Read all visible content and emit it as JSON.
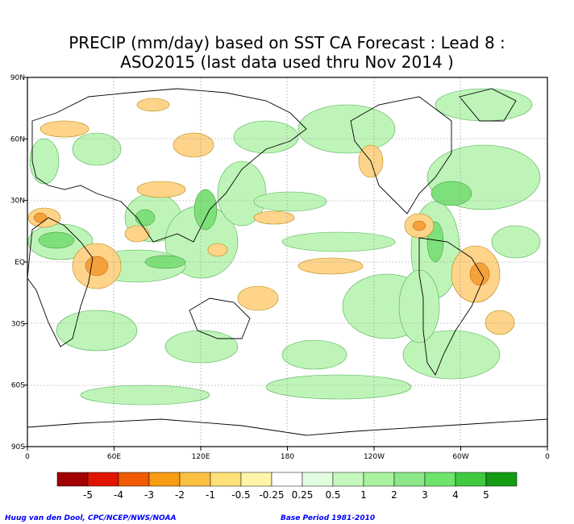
{
  "title": {
    "line1": "PRECIP (mm/day) based on SST CA Forecast : Lead 8 :",
    "line2": "ASO2015 (last data used thru Nov 2014 )"
  },
  "map": {
    "lat_labels": [
      "90N",
      "60N",
      "30N",
      "EQ",
      "30S",
      "60S",
      "90S"
    ],
    "lon_labels": [
      "0",
      "60E",
      "120E",
      "180",
      "120W",
      "60W",
      "0"
    ]
  },
  "legend": {
    "colors": [
      "#a00000",
      "#e01400",
      "#f05a00",
      "#f89c14",
      "#fcc040",
      "#fee178",
      "#fef5aa",
      "#ffffff",
      "#e2fde0",
      "#c4f8bd",
      "#a8f2a0",
      "#8ce888",
      "#6ee46c",
      "#3fca3f",
      "#149c14"
    ],
    "labels": [
      "-5",
      "-4",
      "-3",
      "-2",
      "-1",
      "-0.5",
      "-0.25",
      "0.25",
      "0.5",
      "1",
      "2",
      "3",
      "4",
      "5"
    ]
  },
  "footer": {
    "left": "Huug van den Dool, CPC/NCEP/NWS/NOAA",
    "right": "Base Period 1981-2010"
  }
}
